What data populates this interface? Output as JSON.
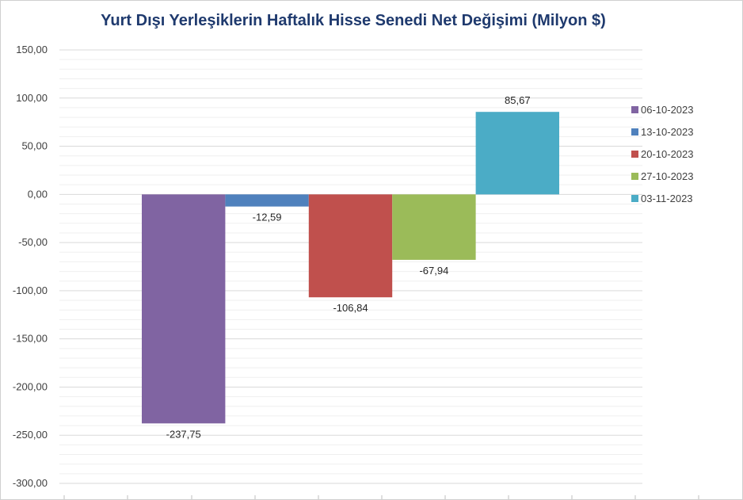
{
  "chart_data": {
    "type": "bar",
    "title": "Yurt Dışı Yerleşiklerin Haftalık Hisse Senedi Net Değişimi (Milyon $)",
    "xlabel": "",
    "ylabel": "",
    "ylim": [
      -300,
      150
    ],
    "y_ticks": [
      150,
      100,
      50,
      0,
      -50,
      -100,
      -150,
      -200,
      -250,
      -300
    ],
    "y_tick_labels": [
      "150,00",
      "100,00",
      "50,00",
      "0,00",
      "-50,00",
      "-100,00",
      "-150,00",
      "-200,00",
      "-250,00",
      "-300,00"
    ],
    "grid": true,
    "legend_position": "right",
    "series": [
      {
        "name": "06-10-2023",
        "value": -237.75,
        "label": "-237,75",
        "color": "#8064a2"
      },
      {
        "name": "13-10-2023",
        "value": -12.59,
        "label": "-12,59",
        "color": "#4f81bd"
      },
      {
        "name": "20-10-2023",
        "value": -106.84,
        "label": "-106,84",
        "color": "#c0504d"
      },
      {
        "name": "27-10-2023",
        "value": -67.94,
        "label": "-67,94",
        "color": "#9bbb59"
      },
      {
        "name": "03-11-2023",
        "value": 85.67,
        "label": "85,67",
        "color": "#4bacc6"
      }
    ]
  }
}
